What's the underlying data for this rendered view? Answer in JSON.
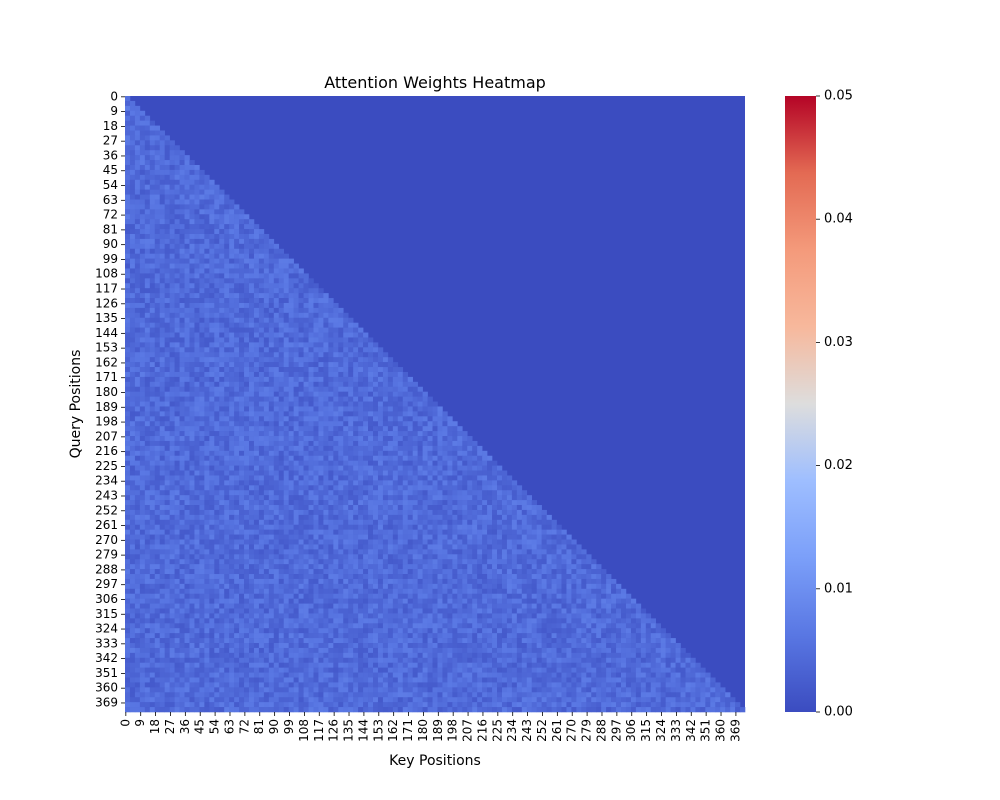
{
  "chart_data": {
    "type": "heatmap",
    "title": "Attention Weights Heatmap",
    "xlabel": "Key Positions",
    "ylabel": "Query Positions",
    "n_rows": 375,
    "n_cols": 375,
    "mask": "causal-lower-triangular",
    "upper_triangle_value": 0.0,
    "lower_triangle_value_range": [
      0.002,
      0.007
    ],
    "x_ticks": [
      "0",
      "9",
      "18",
      "27",
      "36",
      "45",
      "54",
      "63",
      "72",
      "81",
      "90",
      "99",
      "108",
      "117",
      "126",
      "135",
      "144",
      "153",
      "162",
      "171",
      "180",
      "189",
      "198",
      "207",
      "216",
      "225",
      "234",
      "243",
      "252",
      "261",
      "270",
      "279",
      "288",
      "297",
      "306",
      "315",
      "324",
      "333",
      "342",
      "351",
      "360",
      "369"
    ],
    "y_ticks": [
      "0",
      "9",
      "18",
      "27",
      "36",
      "45",
      "54",
      "63",
      "72",
      "81",
      "90",
      "99",
      "108",
      "117",
      "126",
      "135",
      "144",
      "153",
      "162",
      "171",
      "180",
      "189",
      "198",
      "207",
      "216",
      "225",
      "234",
      "243",
      "252",
      "261",
      "270",
      "279",
      "288",
      "297",
      "306",
      "315",
      "324",
      "333",
      "342",
      "351",
      "360",
      "369"
    ],
    "colorbar": {
      "colormap": "coolwarm",
      "vmin": 0.0,
      "vmax": 0.05,
      "ticks": [
        "0.00",
        "0.01",
        "0.02",
        "0.03",
        "0.04",
        "0.05"
      ],
      "colors": [
        "#3b4cc0",
        "#dddddd",
        "#b40426"
      ]
    },
    "grid": false,
    "legend": "none"
  }
}
